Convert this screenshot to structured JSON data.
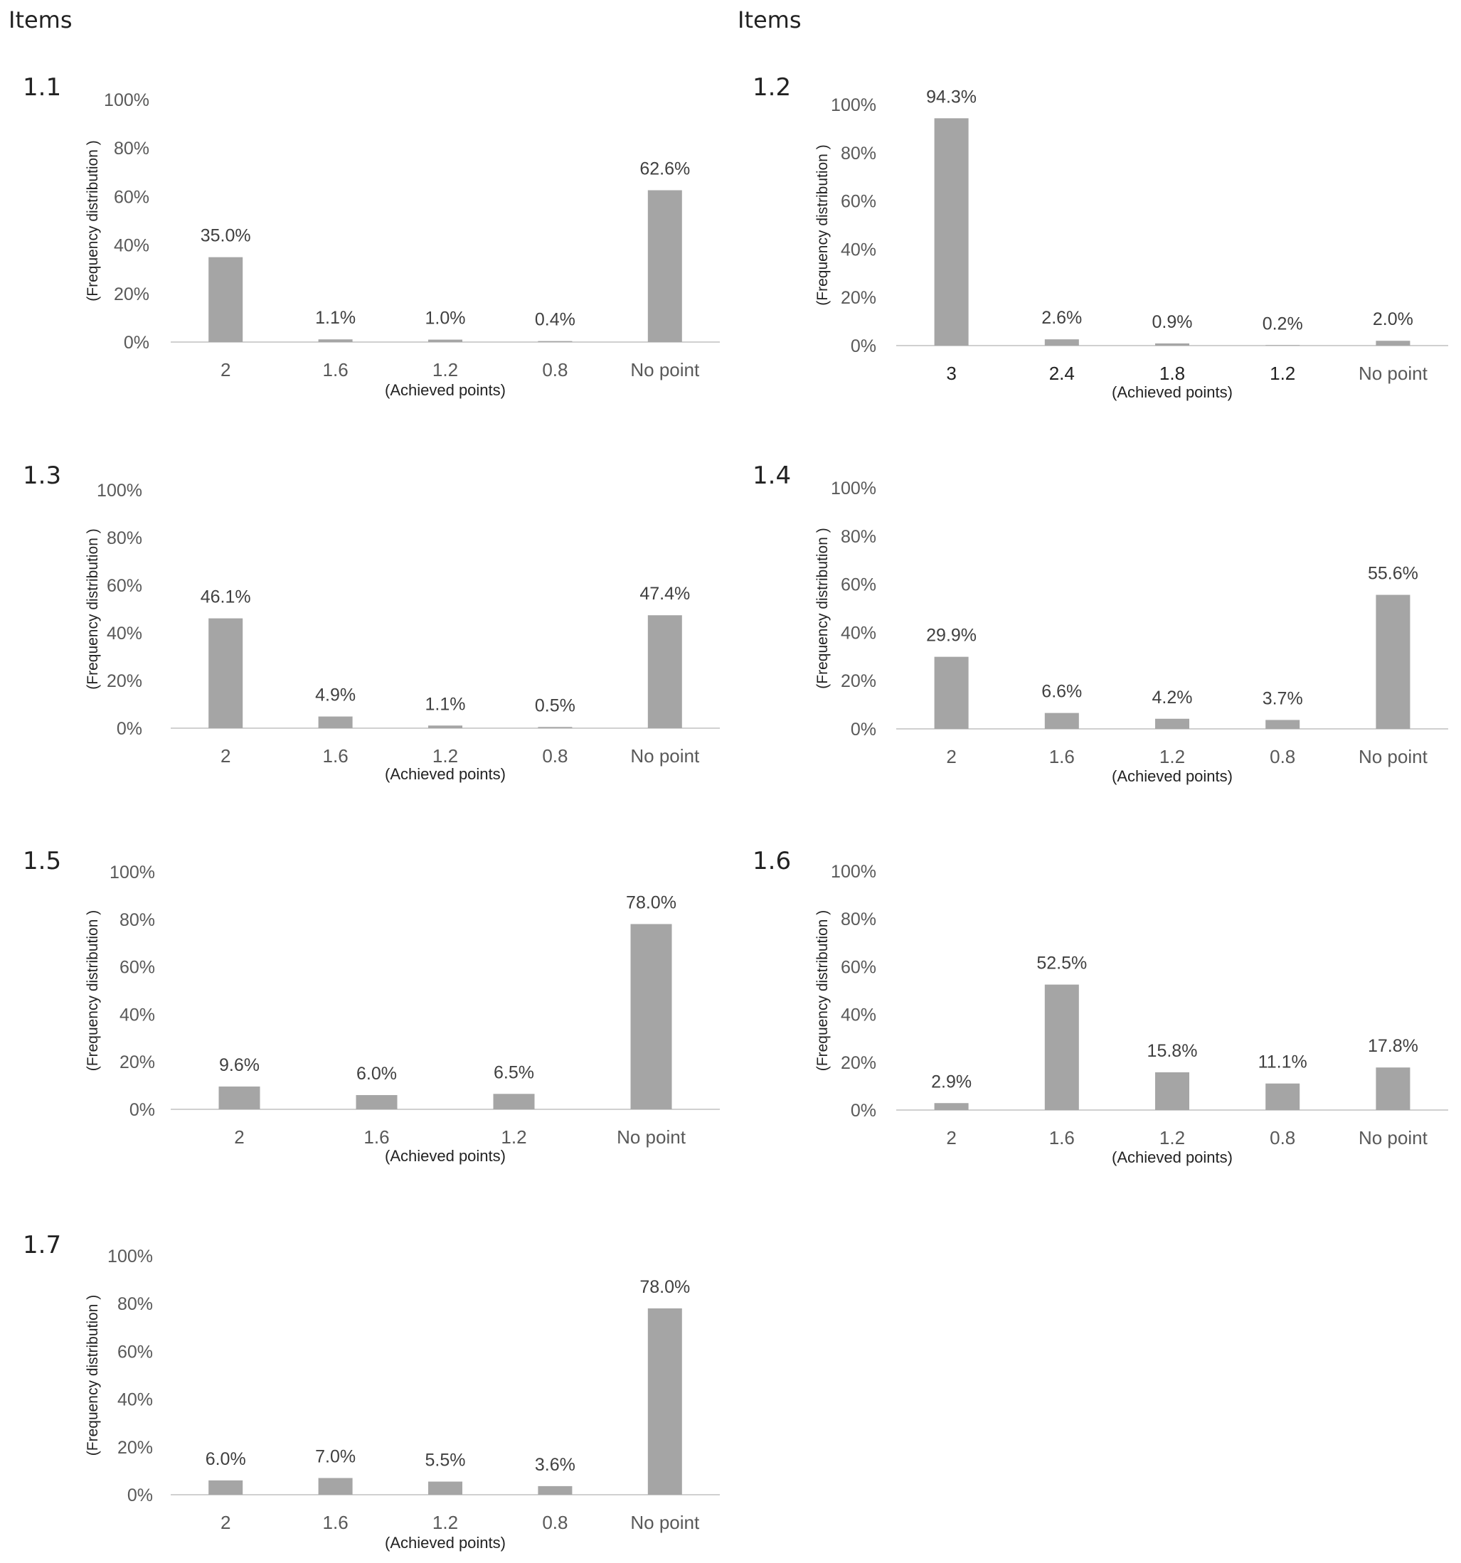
{
  "header": {
    "left_label": "Items",
    "right_label": "Items"
  },
  "style": {
    "bar_color": "#a5a5a5",
    "axis_color": "#d0d0d0",
    "tick_color": "#595959"
  },
  "chart_data": [
    {
      "id": "1.1",
      "type": "bar",
      "categories": [
        "2",
        "1.6",
        "1.2",
        "0.8",
        "No point"
      ],
      "values": [
        35.0,
        1.1,
        1.0,
        0.4,
        62.6
      ],
      "data_labels": [
        "35.0%",
        "1.1%",
        "1.0%",
        "0.4%",
        "62.6%"
      ],
      "xlabel": "(Achieved points)",
      "ylabel": "(Frequency distribution )",
      "yticks": [
        "0%",
        "20%",
        "40%",
        "60%",
        "80%",
        "100%"
      ],
      "ylim": [
        0,
        100
      ],
      "grid": false
    },
    {
      "id": "1.2",
      "type": "bar",
      "categories": [
        "3",
        "2.4",
        "1.8",
        "1.2",
        "No point"
      ],
      "values": [
        94.3,
        2.6,
        0.9,
        0.2,
        2.0
      ],
      "data_labels": [
        "94.3%",
        "2.6%",
        "0.9%",
        "0.2%",
        "2.0%"
      ],
      "xlabel": "(Achieved points)",
      "ylabel": "(Frequency distribution )",
      "yticks": [
        "0%",
        "20%",
        "40%",
        "60%",
        "80%",
        "100%"
      ],
      "ylim": [
        0,
        100
      ],
      "grid": false
    },
    {
      "id": "1.3",
      "type": "bar",
      "categories": [
        "2",
        "1.6",
        "1.2",
        "0.8",
        "No point"
      ],
      "values": [
        46.1,
        4.9,
        1.1,
        0.5,
        47.4
      ],
      "data_labels": [
        "46.1%",
        "4.9%",
        "1.1%",
        "0.5%",
        "47.4%"
      ],
      "xlabel": "(Achieved points)",
      "ylabel": "(Frequency distribution )",
      "yticks": [
        "0%",
        "20%",
        "40%",
        "60%",
        "80%",
        "100%"
      ],
      "ylim": [
        0,
        100
      ],
      "grid": false
    },
    {
      "id": "1.4",
      "type": "bar",
      "categories": [
        "2",
        "1.6",
        "1.2",
        "0.8",
        "No point"
      ],
      "values": [
        29.9,
        6.6,
        4.2,
        3.7,
        55.6
      ],
      "data_labels": [
        "29.9%",
        "6.6%",
        "4.2%",
        "3.7%",
        "55.6%"
      ],
      "xlabel": "(Achieved points)",
      "ylabel": "(Frequency distribution )",
      "yticks": [
        "0%",
        "20%",
        "40%",
        "60%",
        "80%",
        "100%"
      ],
      "ylim": [
        0,
        100
      ],
      "grid": false
    },
    {
      "id": "1.5",
      "type": "bar",
      "categories": [
        "2",
        "1.6",
        "1.2",
        "No point"
      ],
      "values": [
        9.6,
        6.0,
        6.5,
        78.0
      ],
      "data_labels": [
        "9.6%",
        "6.0%",
        "6.5%",
        "78.0%"
      ],
      "xlabel": "(Achieved points)",
      "ylabel": "(Frequency distribution )",
      "yticks": [
        "0%",
        "20%",
        "40%",
        "60%",
        "80%",
        "100%"
      ],
      "ylim": [
        0,
        100
      ],
      "grid": false
    },
    {
      "id": "1.6",
      "type": "bar",
      "categories": [
        "2",
        "1.6",
        "1.2",
        "0.8",
        "No point"
      ],
      "values": [
        2.9,
        52.5,
        15.8,
        11.1,
        17.8
      ],
      "data_labels": [
        "2.9%",
        "52.5%",
        "15.8%",
        "11.1%",
        "17.8%"
      ],
      "xlabel": "(Achieved points)",
      "ylabel": "(Frequency distribution )",
      "yticks": [
        "0%",
        "20%",
        "40%",
        "60%",
        "80%",
        "100%"
      ],
      "ylim": [
        0,
        100
      ],
      "grid": false
    },
    {
      "id": "1.7",
      "type": "bar",
      "categories": [
        "2",
        "1.6",
        "1.2",
        "0.8",
        "No point"
      ],
      "values": [
        6.0,
        7.0,
        5.5,
        3.6,
        78.0
      ],
      "data_labels": [
        "6.0%",
        "7.0%",
        "5.5%",
        "3.6%",
        "78.0%"
      ],
      "xlabel": "(Achieved points)",
      "ylabel": "(Frequency distribution )",
      "yticks": [
        "0%",
        "20%",
        "40%",
        "60%",
        "80%",
        "100%"
      ],
      "ylim": [
        0,
        100
      ],
      "grid": false
    }
  ]
}
